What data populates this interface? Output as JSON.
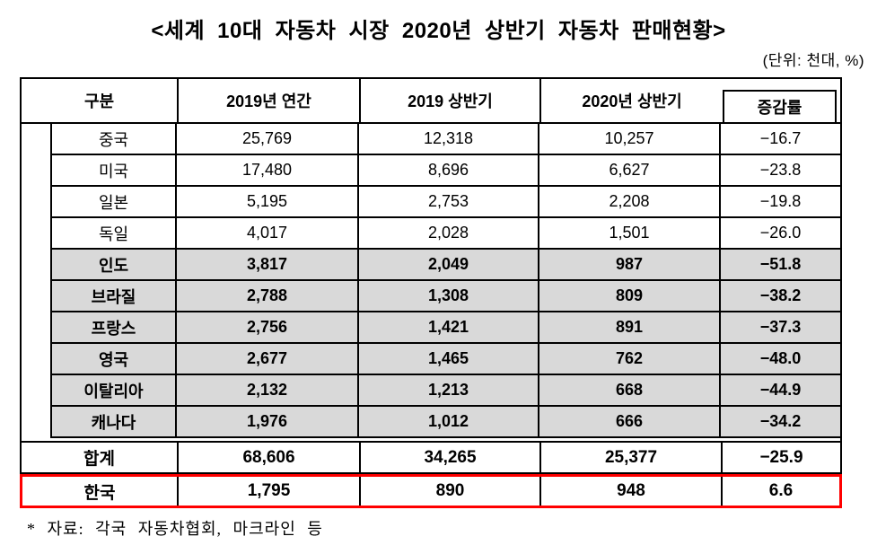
{
  "title": "<세계 10대 자동차 시장 2020년 상반기 자동차 판매현황>",
  "unit_note": "(단위: 천대, %)",
  "table": {
    "columns": {
      "category": "구분",
      "annual_2019": "2019년 연간",
      "h1_2019": "2019 상반기",
      "h1_2020": "2020년 상반기",
      "change_rate": "증감률"
    },
    "rows": [
      {
        "name": "중국",
        "annual_2019": "25,769",
        "h1_2019": "12,318",
        "h1_2020": "10,257",
        "change": "−16.7",
        "shaded": false
      },
      {
        "name": "미국",
        "annual_2019": "17,480",
        "h1_2019": "8,696",
        "h1_2020": "6,627",
        "change": "−23.8",
        "shaded": false
      },
      {
        "name": "일본",
        "annual_2019": "5,195",
        "h1_2019": "2,753",
        "h1_2020": "2,208",
        "change": "−19.8",
        "shaded": false
      },
      {
        "name": "독일",
        "annual_2019": "4,017",
        "h1_2019": "2,028",
        "h1_2020": "1,501",
        "change": "−26.0",
        "shaded": false
      },
      {
        "name": "인도",
        "annual_2019": "3,817",
        "h1_2019": "2,049",
        "h1_2020": "987",
        "change": "−51.8",
        "shaded": true
      },
      {
        "name": "브라질",
        "annual_2019": "2,788",
        "h1_2019": "1,308",
        "h1_2020": "809",
        "change": "−38.2",
        "shaded": true
      },
      {
        "name": "프랑스",
        "annual_2019": "2,756",
        "h1_2019": "1,421",
        "h1_2020": "891",
        "change": "−37.3",
        "shaded": true
      },
      {
        "name": "영국",
        "annual_2019": "2,677",
        "h1_2019": "1,465",
        "h1_2020": "762",
        "change": "−48.0",
        "shaded": true
      },
      {
        "name": "이탈리아",
        "annual_2019": "2,132",
        "h1_2019": "1,213",
        "h1_2020": "668",
        "change": "−44.9",
        "shaded": true
      },
      {
        "name": "캐나다",
        "annual_2019": "1,976",
        "h1_2019": "1,012",
        "h1_2020": "666",
        "change": "−34.2",
        "shaded": true
      }
    ],
    "total_row": {
      "name": "합계",
      "annual_2019": "68,606",
      "h1_2019": "34,265",
      "h1_2020": "25,377",
      "change": "−25.9"
    },
    "korea_row": {
      "name": "한국",
      "annual_2019": "1,795",
      "h1_2019": "890",
      "h1_2020": "948",
      "change": "6.6"
    }
  },
  "footnote": "* 자료: 각국 자동차협회, 마크라인 등",
  "colors": {
    "border": "#000000",
    "row_shade": "#d9d9d9",
    "highlight_border": "#ff0000",
    "background": "#ffffff"
  }
}
